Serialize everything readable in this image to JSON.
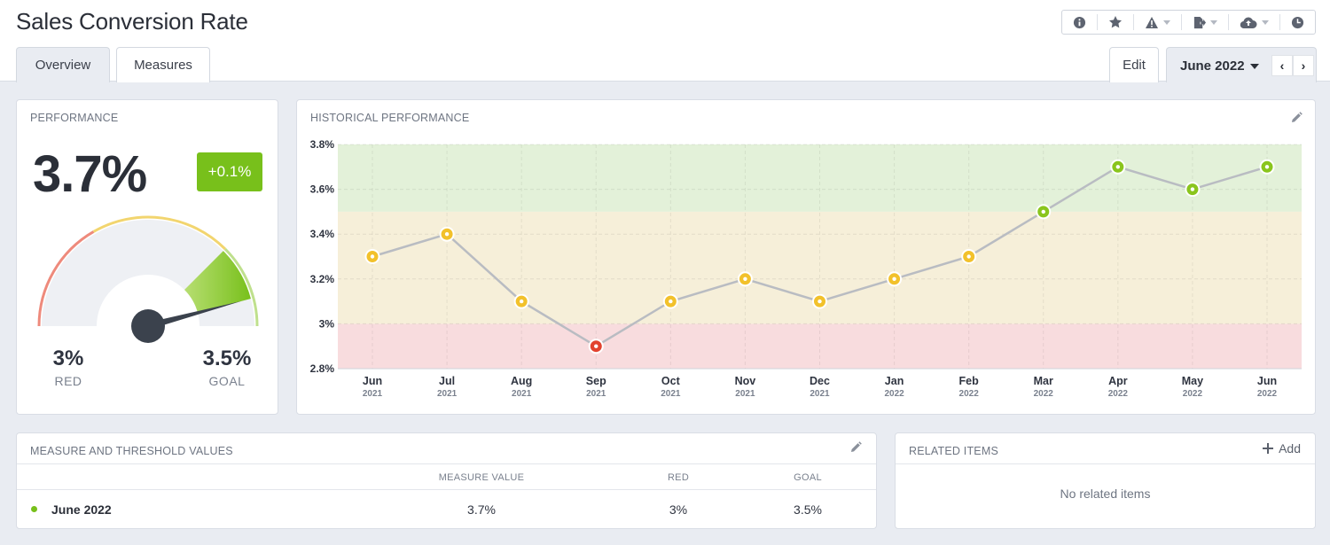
{
  "header": {
    "title": "Sales Conversion Rate",
    "toolbar_icons": [
      "info-icon",
      "star-icon",
      "alert-icon",
      "export-icon",
      "cloud-upload-icon",
      "clock-icon"
    ]
  },
  "tabs": [
    {
      "label": "Overview",
      "active": true
    },
    {
      "label": "Measures",
      "active": false
    }
  ],
  "actions": {
    "edit_label": "Edit",
    "period_label": "June 2022"
  },
  "performance": {
    "title": "PERFORMANCE",
    "value": "3.7%",
    "delta": "+0.1%",
    "gauge": {
      "min": 2.6,
      "max": 3.8,
      "red": 3.0,
      "goal": 3.5,
      "current": 3.7,
      "red_value": "3%",
      "red_label": "RED",
      "goal_value": "3.5%",
      "goal_label": "GOAL"
    },
    "colors": {
      "good": "#78c01b",
      "warn": "#f2d56f",
      "bad": "#ee8a7c"
    }
  },
  "historical": {
    "title": "HISTORICAL PERFORMANCE"
  },
  "chart_data": {
    "type": "line",
    "title": "",
    "x": [
      {
        "month": "Jun",
        "year": "2021"
      },
      {
        "month": "Jul",
        "year": "2021"
      },
      {
        "month": "Aug",
        "year": "2021"
      },
      {
        "month": "Sep",
        "year": "2021"
      },
      {
        "month": "Oct",
        "year": "2021"
      },
      {
        "month": "Nov",
        "year": "2021"
      },
      {
        "month": "Dec",
        "year": "2021"
      },
      {
        "month": "Jan",
        "year": "2022"
      },
      {
        "month": "Feb",
        "year": "2022"
      },
      {
        "month": "Mar",
        "year": "2022"
      },
      {
        "month": "Apr",
        "year": "2022"
      },
      {
        "month": "May",
        "year": "2022"
      },
      {
        "month": "Jun",
        "year": "2022"
      }
    ],
    "values": [
      3.3,
      3.4,
      3.1,
      2.9,
      3.1,
      3.2,
      3.1,
      3.2,
      3.3,
      3.5,
      3.7,
      3.6,
      3.7
    ],
    "ylim": [
      2.8,
      3.8
    ],
    "yticks": [
      {
        "value": 3.8,
        "label": "3.8%"
      },
      {
        "value": 3.6,
        "label": "3.6%"
      },
      {
        "value": 3.4,
        "label": "3.4%"
      },
      {
        "value": 3.2,
        "label": "3.2%"
      },
      {
        "value": 3.0,
        "label": "3%"
      },
      {
        "value": 2.8,
        "label": "2.8%"
      }
    ],
    "bands": [
      {
        "from": 2.8,
        "to": 3.0,
        "color": "#f8dcde"
      },
      {
        "from": 3.0,
        "to": 3.5,
        "color": "#f6efd9"
      },
      {
        "from": 3.5,
        "to": 3.8,
        "color": "#e3f1d9"
      }
    ],
    "thresholds": {
      "red": 3.0,
      "goal": 3.5
    },
    "point_colors": {
      "bad": "#e2422e",
      "warn": "#f2c12b",
      "good": "#8ac51d"
    },
    "line_color": "#b9bcc2",
    "grid": true
  },
  "measures": {
    "title": "MEASURE AND THRESHOLD VALUES",
    "columns": [
      "MEASURE VALUE",
      "RED",
      "GOAL"
    ],
    "rows": [
      {
        "name": "June 2022",
        "status": "good",
        "values": [
          "3.7%",
          "3%",
          "3.5%"
        ]
      }
    ]
  },
  "related": {
    "title": "RELATED ITEMS",
    "add_label": "Add",
    "empty_text": "No related items"
  }
}
